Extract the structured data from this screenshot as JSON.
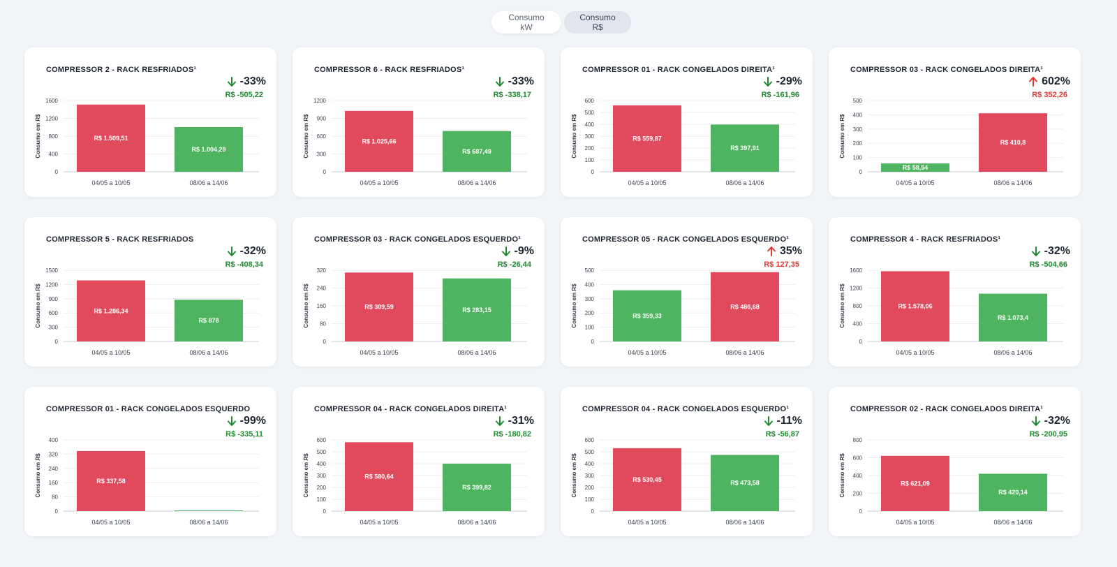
{
  "toggle": {
    "kw_label": "Consumo kW",
    "rs_label": "Consumo R$"
  },
  "colors": {
    "red": "#e04a5c",
    "green": "#4fb45f",
    "down_text": "#1f8a2e",
    "up_text": "#e0392f"
  },
  "chart_data": [
    {
      "type": "bar",
      "title": "COMPRESSOR 2 - RACK RESFRIADOS¹",
      "ylabel": "Consumo em R$",
      "categories": [
        "04/05 a 10/05",
        "08/06 a 14/06"
      ],
      "values": [
        1509.51,
        1004.29
      ],
      "value_labels": [
        "R$ 1.509,51",
        "R$ 1.004,29"
      ],
      "bar_colors": [
        "red",
        "green"
      ],
      "yticks": [
        "0",
        "400",
        "800",
        "1200",
        "1600"
      ],
      "ylim": [
        0,
        1600
      ],
      "change_pct": "-33%",
      "change_value": "R$ -505,22",
      "direction": "down"
    },
    {
      "type": "bar",
      "title": "COMPRESSOR 6 - RACK RESFRIADOS¹",
      "ylabel": "Consumo em R$",
      "categories": [
        "04/05 a 10/05",
        "08/06 a 14/06"
      ],
      "values": [
        1025.66,
        687.49
      ],
      "value_labels": [
        "R$ 1.025,66",
        "R$ 687,49"
      ],
      "bar_colors": [
        "red",
        "green"
      ],
      "yticks": [
        "0",
        "300",
        "600",
        "900",
        "1200"
      ],
      "ylim": [
        0,
        1200
      ],
      "change_pct": "-33%",
      "change_value": "R$ -338,17",
      "direction": "down"
    },
    {
      "type": "bar",
      "title": "COMPRESSOR 01 - RACK CONGELADOS DIREITA¹",
      "ylabel": "Consumo em R$",
      "categories": [
        "04/05 a 10/05",
        "08/06 a 14/06"
      ],
      "values": [
        559.87,
        397.91
      ],
      "value_labels": [
        "R$ 559,87",
        "R$ 397,91"
      ],
      "bar_colors": [
        "red",
        "green"
      ],
      "yticks": [
        "0",
        "100",
        "200",
        "300",
        "400",
        "500",
        "600"
      ],
      "ylim": [
        0,
        600
      ],
      "change_pct": "-29%",
      "change_value": "R$ -161,96",
      "direction": "down"
    },
    {
      "type": "bar",
      "title": "COMPRESSOR 03 - RACK CONGELADOS DIREITA¹",
      "ylabel": "Consumo em R$",
      "categories": [
        "04/05 a 10/05",
        "08/06 a 14/06"
      ],
      "values": [
        58.54,
        410.8
      ],
      "value_labels": [
        "R$ 58,54",
        "R$ 410,8"
      ],
      "bar_colors": [
        "green",
        "red"
      ],
      "yticks": [
        "0",
        "100",
        "200",
        "300",
        "400",
        "500"
      ],
      "ylim": [
        0,
        500
      ],
      "change_pct": "602%",
      "change_value": "R$ 352,26",
      "direction": "up"
    },
    {
      "type": "bar",
      "title": "COMPRESSOR 5 - RACK RESFRIADOS",
      "ylabel": "Consumo em R$",
      "categories": [
        "04/05 a 10/05",
        "08/06 a 14/06"
      ],
      "values": [
        1286.34,
        878
      ],
      "value_labels": [
        "R$ 1.286,34",
        "R$ 878"
      ],
      "bar_colors": [
        "red",
        "green"
      ],
      "yticks": [
        "0",
        "300",
        "600",
        "900",
        "1200",
        "1500"
      ],
      "ylim": [
        0,
        1500
      ],
      "change_pct": "-32%",
      "change_value": "R$ -408,34",
      "direction": "down"
    },
    {
      "type": "bar",
      "title": "COMPRESSOR 03 - RACK CONGELADOS ESQUERDO¹",
      "ylabel": "Consumo em R$",
      "categories": [
        "04/05 a 10/05",
        "08/06 a 14/06"
      ],
      "values": [
        309.59,
        283.15
      ],
      "value_labels": [
        "R$ 309,59",
        "R$ 283,15"
      ],
      "bar_colors": [
        "red",
        "green"
      ],
      "yticks": [
        "0",
        "80",
        "160",
        "240",
        "320"
      ],
      "ylim": [
        0,
        320
      ],
      "change_pct": "-9%",
      "change_value": "R$ -26,44",
      "direction": "down"
    },
    {
      "type": "bar",
      "title": "COMPRESSOR 05 - RACK CONGELADOS ESQUERDO¹",
      "ylabel": "Consumo em R$",
      "categories": [
        "04/05 a 10/05",
        "08/06 a 14/06"
      ],
      "values": [
        359.33,
        486.68
      ],
      "value_labels": [
        "R$ 359,33",
        "R$ 486,68"
      ],
      "bar_colors": [
        "green",
        "red"
      ],
      "yticks": [
        "0",
        "100",
        "200",
        "300",
        "400",
        "500"
      ],
      "ylim": [
        0,
        500
      ],
      "change_pct": "35%",
      "change_value": "R$ 127,35",
      "direction": "up"
    },
    {
      "type": "bar",
      "title": "COMPRESSOR 4 - RACK RESFRIADOS¹",
      "ylabel": "Consumo em R$",
      "categories": [
        "04/05 a 10/05",
        "08/06 a 14/06"
      ],
      "values": [
        1578.06,
        1073.4
      ],
      "value_labels": [
        "R$ 1.578,06",
        "R$ 1.073,4"
      ],
      "bar_colors": [
        "red",
        "green"
      ],
      "yticks": [
        "0",
        "400",
        "800",
        "1200",
        "1600"
      ],
      "ylim": [
        0,
        1600
      ],
      "change_pct": "-32%",
      "change_value": "R$ -504,66",
      "direction": "down"
    },
    {
      "type": "bar",
      "title": "COMPRESSOR 01 - RACK CONGELADOS ESQUERDO",
      "ylabel": "Consumo em R$",
      "categories": [
        "04/05 a 10/05",
        "08/06 a 14/06"
      ],
      "values": [
        337.58,
        2.47
      ],
      "value_labels": [
        "R$ 337,58",
        ""
      ],
      "bar_colors": [
        "red",
        "green"
      ],
      "yticks": [
        "0",
        "80",
        "160",
        "240",
        "320",
        "400"
      ],
      "ylim": [
        0,
        400
      ],
      "change_pct": "-99%",
      "change_value": "R$ -335,11",
      "direction": "down"
    },
    {
      "type": "bar",
      "title": "COMPRESSOR 04 - RACK CONGELADOS DIREITA¹",
      "ylabel": "Consumo em R$",
      "categories": [
        "04/05 a 10/05",
        "08/06 a 14/06"
      ],
      "values": [
        580.64,
        399.82
      ],
      "value_labels": [
        "R$ 580,64",
        "R$ 399,82"
      ],
      "bar_colors": [
        "red",
        "green"
      ],
      "yticks": [
        "0",
        "100",
        "200",
        "300",
        "400",
        "500",
        "600"
      ],
      "ylim": [
        0,
        600
      ],
      "change_pct": "-31%",
      "change_value": "R$ -180,82",
      "direction": "down"
    },
    {
      "type": "bar",
      "title": "COMPRESSOR 04 - RACK CONGELADOS ESQUERDO¹",
      "ylabel": "Consumo em R$",
      "categories": [
        "04/05 a 10/05",
        "08/06 a 14/06"
      ],
      "values": [
        530.45,
        473.58
      ],
      "value_labels": [
        "R$ 530,45",
        "R$ 473,58"
      ],
      "bar_colors": [
        "red",
        "green"
      ],
      "yticks": [
        "0",
        "100",
        "200",
        "300",
        "400",
        "500",
        "600"
      ],
      "ylim": [
        0,
        600
      ],
      "change_pct": "-11%",
      "change_value": "R$ -56,87",
      "direction": "down"
    },
    {
      "type": "bar",
      "title": "COMPRESSOR 02 - RACK CONGELADOS DIREITA¹",
      "ylabel": "Consumo em R$",
      "categories": [
        "04/05 a 10/05",
        "08/06 a 14/06"
      ],
      "values": [
        621.09,
        420.14
      ],
      "value_labels": [
        "R$ 621,09",
        "R$ 420,14"
      ],
      "bar_colors": [
        "red",
        "green"
      ],
      "yticks": [
        "0",
        "200",
        "400",
        "600",
        "800"
      ],
      "ylim": [
        0,
        800
      ],
      "change_pct": "-32%",
      "change_value": "R$ -200,95",
      "direction": "down"
    }
  ]
}
